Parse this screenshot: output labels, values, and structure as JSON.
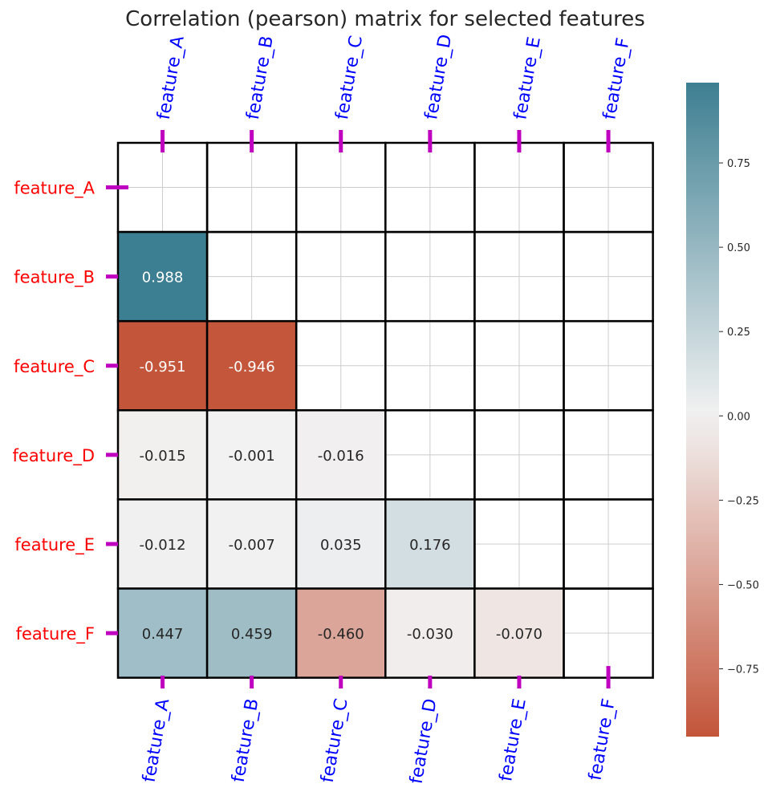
{
  "chart_data": {
    "type": "heatmap",
    "title": "Correlation (pearson) matrix for selected features",
    "features": [
      "feature_A",
      "feature_B",
      "feature_C",
      "feature_D",
      "feature_E",
      "feature_F"
    ],
    "mask": "upper-triangle-including-diagonal",
    "matrix": [
      [
        null,
        null,
        null,
        null,
        null,
        null
      ],
      [
        0.988,
        null,
        null,
        null,
        null,
        null
      ],
      [
        -0.951,
        -0.946,
        null,
        null,
        null,
        null
      ],
      [
        -0.015,
        -0.001,
        -0.016,
        null,
        null,
        null
      ],
      [
        -0.012,
        -0.007,
        0.035,
        0.176,
        null,
        null
      ],
      [
        0.447,
        0.459,
        -0.46,
        -0.03,
        -0.07,
        null
      ]
    ],
    "value_labels": [
      [
        "",
        "",
        "",
        "",
        "",
        ""
      ],
      [
        "0.988",
        "",
        "",
        "",
        "",
        ""
      ],
      [
        "-0.951",
        "-0.946",
        "",
        "",
        "",
        ""
      ],
      [
        "-0.015",
        "-0.001",
        "-0.016",
        "",
        "",
        ""
      ],
      [
        "-0.012",
        "-0.007",
        "0.035",
        "0.176",
        "",
        ""
      ],
      [
        "0.447",
        "0.459",
        "-0.460",
        "-0.030",
        "-0.070",
        ""
      ]
    ],
    "colorbar": {
      "vmin": -0.951,
      "vmax": 0.988,
      "ticks": [
        0.75,
        0.5,
        0.25,
        0.0,
        -0.25,
        -0.5,
        -0.75
      ],
      "tick_labels": [
        "0.75",
        "0.50",
        "0.25",
        "0.00",
        "−0.25",
        "−0.50",
        "−0.75"
      ],
      "negative_color": "#c3553a",
      "center_color": "#f2f2f2",
      "positive_color": "#3d7f92"
    },
    "colors": {
      "title": "#262626",
      "x_tick_labels": "#0000ff",
      "y_tick_labels": "#ff0000",
      "tick_marks": "#bf00bf",
      "cell_border": "#000000",
      "grid": "#cccccc"
    },
    "grid": true
  }
}
